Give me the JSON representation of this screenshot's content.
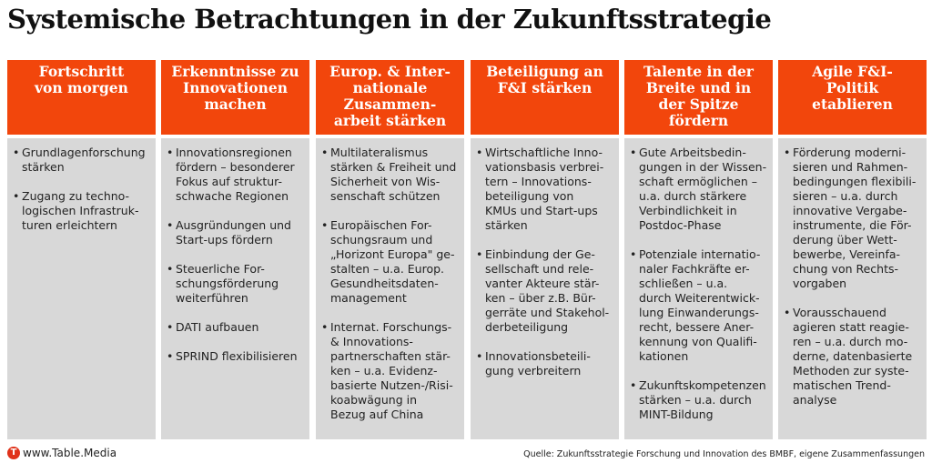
{
  "title": "Systemische Betrachtungen in der Zukunftsstrategie",
  "accent": "#f2460c",
  "columns": [
    {
      "header": "Fortschritt\nvon morgen",
      "items": [
        "Grundlagenforschung\nstärken",
        "Zugang zu techno-\nlogischen Infrastruk-\nturen erleichtern"
      ]
    },
    {
      "header": "Erkenntnisse zu\nInnovationen\nmachen",
      "items": [
        "Innovationsregionen\nfördern – besonderer\nFokus auf struktur-\nschwache Regionen",
        "Ausgründungen und\nStart-ups fördern",
        "Steuerliche For-\nschungsförderung\nweiterführen",
        "DATI aufbauen",
        "SPRIND flexibilisieren"
      ]
    },
    {
      "header": "Europ. & Inter-\nnationale\nZusammen-\narbeit stärken",
      "items": [
        "Multilateralismus\nstärken & Freiheit und\nSicherheit von Wis-\nsenschaft schützen",
        "Europäischen For-\nschungsraum und\n„Horizont Europa\" ge-\nstalten – u.a. Europ.\nGesundheitsdaten-\nmanagement",
        "Internat. Forschungs-\n& Innovations-\npartnerschaften stär-\nken – u.a. Evidenz-\nbasierte Nutzen-/Risi-\nkoabwägung in\nBezug auf China"
      ]
    },
    {
      "header": "Beteiligung an\nF&I stärken",
      "items": [
        "Wirtschaftliche Inno-\nvationsbasis verbrei-\ntern – Innovations-\nbeteiligung von\nKMUs und Start-ups\nstärken",
        "Einbindung der Ge-\nsellschaft und rele-\nvanter Akteure stär-\nken – über z.B. Bür-\ngerräte und Stakehol-\nderbeteiligung",
        "Innovationsbeteili-\ngung verbreitern"
      ]
    },
    {
      "header": "Talente in der\nBreite und in\nder Spitze\nfördern",
      "items": [
        "Gute Arbeitsbedin-\ngungen in der Wissen-\nschaft ermöglichen –\nu.a. durch stärkere\nVerbindlichkeit in\nPostdoc-Phase",
        "Potenziale internatio-\nnaler Fachkräfte er-\nschließen – u.a.\ndurch Weiterentwick-\nlung Einwanderungs-\nrecht, bessere Aner-\nkennung von Qualifi-\nkationen",
        "Zukunftskompetenzen\nstärken – u.a. durch\nMINT-Bildung"
      ]
    },
    {
      "header": "Agile F&I-\nPolitik\netablieren",
      "items": [
        "Förderung moderni-\nsieren und Rahmen-\nbedingungen flexibili-\nsieren – u.a. durch\ninnovative Vergabe-\ninstrumente, die För-\nderung über Wett-\nbewerbe, Vereinfa-\nchung von Rechts-\nvorgaben",
        "Vorausschauend\nagieren statt reagie-\nren – u.a. durch mo-\nderne, datenbasierte\nMethoden zur syste-\nmatischen Trend-\nanalyse"
      ]
    }
  ],
  "footer": {
    "logo_letter": "T",
    "site": "www.Table.Media",
    "source": "Quelle:  Zukunftsstrategie Forschung und Innovation des BMBF, eigene Zusammenfassungen"
  }
}
